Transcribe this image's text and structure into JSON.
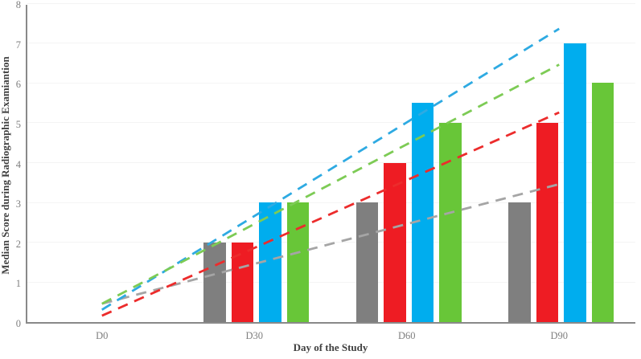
{
  "chart_data": {
    "type": "bar",
    "title": "",
    "xlabel": "Day of the Study",
    "ylabel": "Median Score during Radiographic Examiantion",
    "categories": [
      "D0",
      "D30",
      "D60",
      "D90"
    ],
    "series": [
      {
        "name": "gray",
        "color": "#7f7f7f",
        "values": [
          0,
          2,
          3,
          3
        ],
        "trendline": {
          "style": "dashed",
          "color": "#a5a5a5",
          "start_value": 0.5,
          "end_value": 3.5
        }
      },
      {
        "name": "red",
        "color": "#ee1c23",
        "values": [
          0,
          2,
          4,
          5
        ],
        "trendline": {
          "style": "dashed",
          "color": "#ec2c2c",
          "start_value": 0.2,
          "end_value": 5.3
        }
      },
      {
        "name": "blue",
        "color": "#00adee",
        "values": [
          0,
          3,
          5.5,
          7
        ],
        "trendline": {
          "style": "dashed",
          "color": "#2eaae2",
          "start_value": 0.35,
          "end_value": 7.4
        }
      },
      {
        "name": "green",
        "color": "#68c638",
        "values": [
          0,
          3,
          5,
          6
        ],
        "trendline": {
          "style": "dashed",
          "color": "#7dcb55",
          "start_value": 0.5,
          "end_value": 6.5
        }
      }
    ],
    "ylim": [
      0,
      8
    ],
    "yticks": [
      0,
      1,
      2,
      3,
      4,
      5,
      6,
      7,
      8
    ],
    "grid": "horizontal",
    "legend": "none",
    "style_colors": {
      "axis_line": "#898989",
      "gridline": "#f4f4f4",
      "tick_text": "#7f7f7f",
      "axis_title_text": "#404040",
      "background": "#ffffff"
    }
  }
}
